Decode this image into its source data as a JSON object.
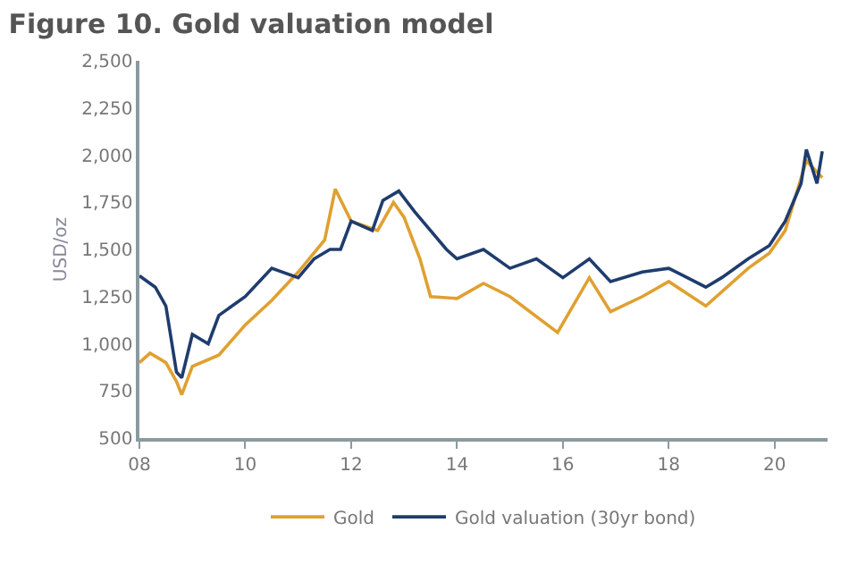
{
  "chart_data": {
    "type": "line",
    "title": "Figure 10. Gold valuation model",
    "ylabel": "USD/oz",
    "xlim": [
      8,
      21
    ],
    "xticks": [
      {
        "value": 8,
        "label": "08"
      },
      {
        "value": 10,
        "label": "10"
      },
      {
        "value": 12,
        "label": "12"
      },
      {
        "value": 14,
        "label": "14"
      },
      {
        "value": 16,
        "label": "16"
      },
      {
        "value": 18,
        "label": "18"
      },
      {
        "value": 20,
        "label": "20"
      }
    ],
    "ylim": [
      500,
      2500
    ],
    "yticks": [
      {
        "value": 500,
        "label": "500"
      },
      {
        "value": 750,
        "label": "750"
      },
      {
        "value": 1000,
        "label": "1,000"
      },
      {
        "value": 1250,
        "label": "1,250"
      },
      {
        "value": 1500,
        "label": "1,500"
      },
      {
        "value": 1750,
        "label": "1,750"
      },
      {
        "value": 2000,
        "label": "2,000"
      },
      {
        "value": 2250,
        "label": "2,250"
      },
      {
        "value": 2500,
        "label": "2,500"
      }
    ],
    "grid": false,
    "legend": "bottom",
    "marker": "none",
    "line_style": "solid",
    "series": [
      {
        "name": "Gold",
        "color": "#e0a030",
        "x": [
          8.0,
          8.2,
          8.5,
          8.7,
          8.8,
          9.0,
          9.5,
          10.0,
          10.5,
          11.0,
          11.5,
          11.7,
          12.0,
          12.5,
          12.8,
          13.0,
          13.3,
          13.5,
          14.0,
          14.5,
          15.0,
          15.9,
          16.5,
          16.9,
          17.5,
          18.0,
          18.7,
          19.5,
          19.9,
          20.2,
          20.6,
          20.9
        ],
        "values": [
          900,
          950,
          900,
          800,
          730,
          880,
          940,
          1100,
          1230,
          1380,
          1550,
          1820,
          1650,
          1600,
          1750,
          1670,
          1450,
          1250,
          1240,
          1320,
          1250,
          1060,
          1350,
          1170,
          1250,
          1330,
          1200,
          1400,
          1480,
          1600,
          1970,
          1880
        ]
      },
      {
        "name": "Gold valuation (30yr bond)",
        "color": "#1f3c6e",
        "x": [
          8.0,
          8.3,
          8.5,
          8.7,
          8.8,
          9.0,
          9.3,
          9.5,
          10.0,
          10.5,
          11.0,
          11.3,
          11.6,
          11.8,
          12.0,
          12.4,
          12.6,
          12.9,
          13.2,
          13.5,
          13.8,
          14.0,
          14.5,
          15.0,
          15.5,
          16.0,
          16.5,
          16.9,
          17.5,
          18.0,
          18.7,
          19.0,
          19.5,
          19.9,
          20.2,
          20.5,
          20.6,
          20.8,
          20.9
        ],
        "values": [
          1360,
          1300,
          1200,
          850,
          820,
          1050,
          1000,
          1150,
          1250,
          1400,
          1350,
          1450,
          1500,
          1500,
          1650,
          1600,
          1760,
          1810,
          1700,
          1600,
          1500,
          1450,
          1500,
          1400,
          1450,
          1350,
          1450,
          1330,
          1380,
          1400,
          1300,
          1350,
          1450,
          1520,
          1650,
          1850,
          2030,
          1850,
          2020
        ]
      }
    ]
  }
}
